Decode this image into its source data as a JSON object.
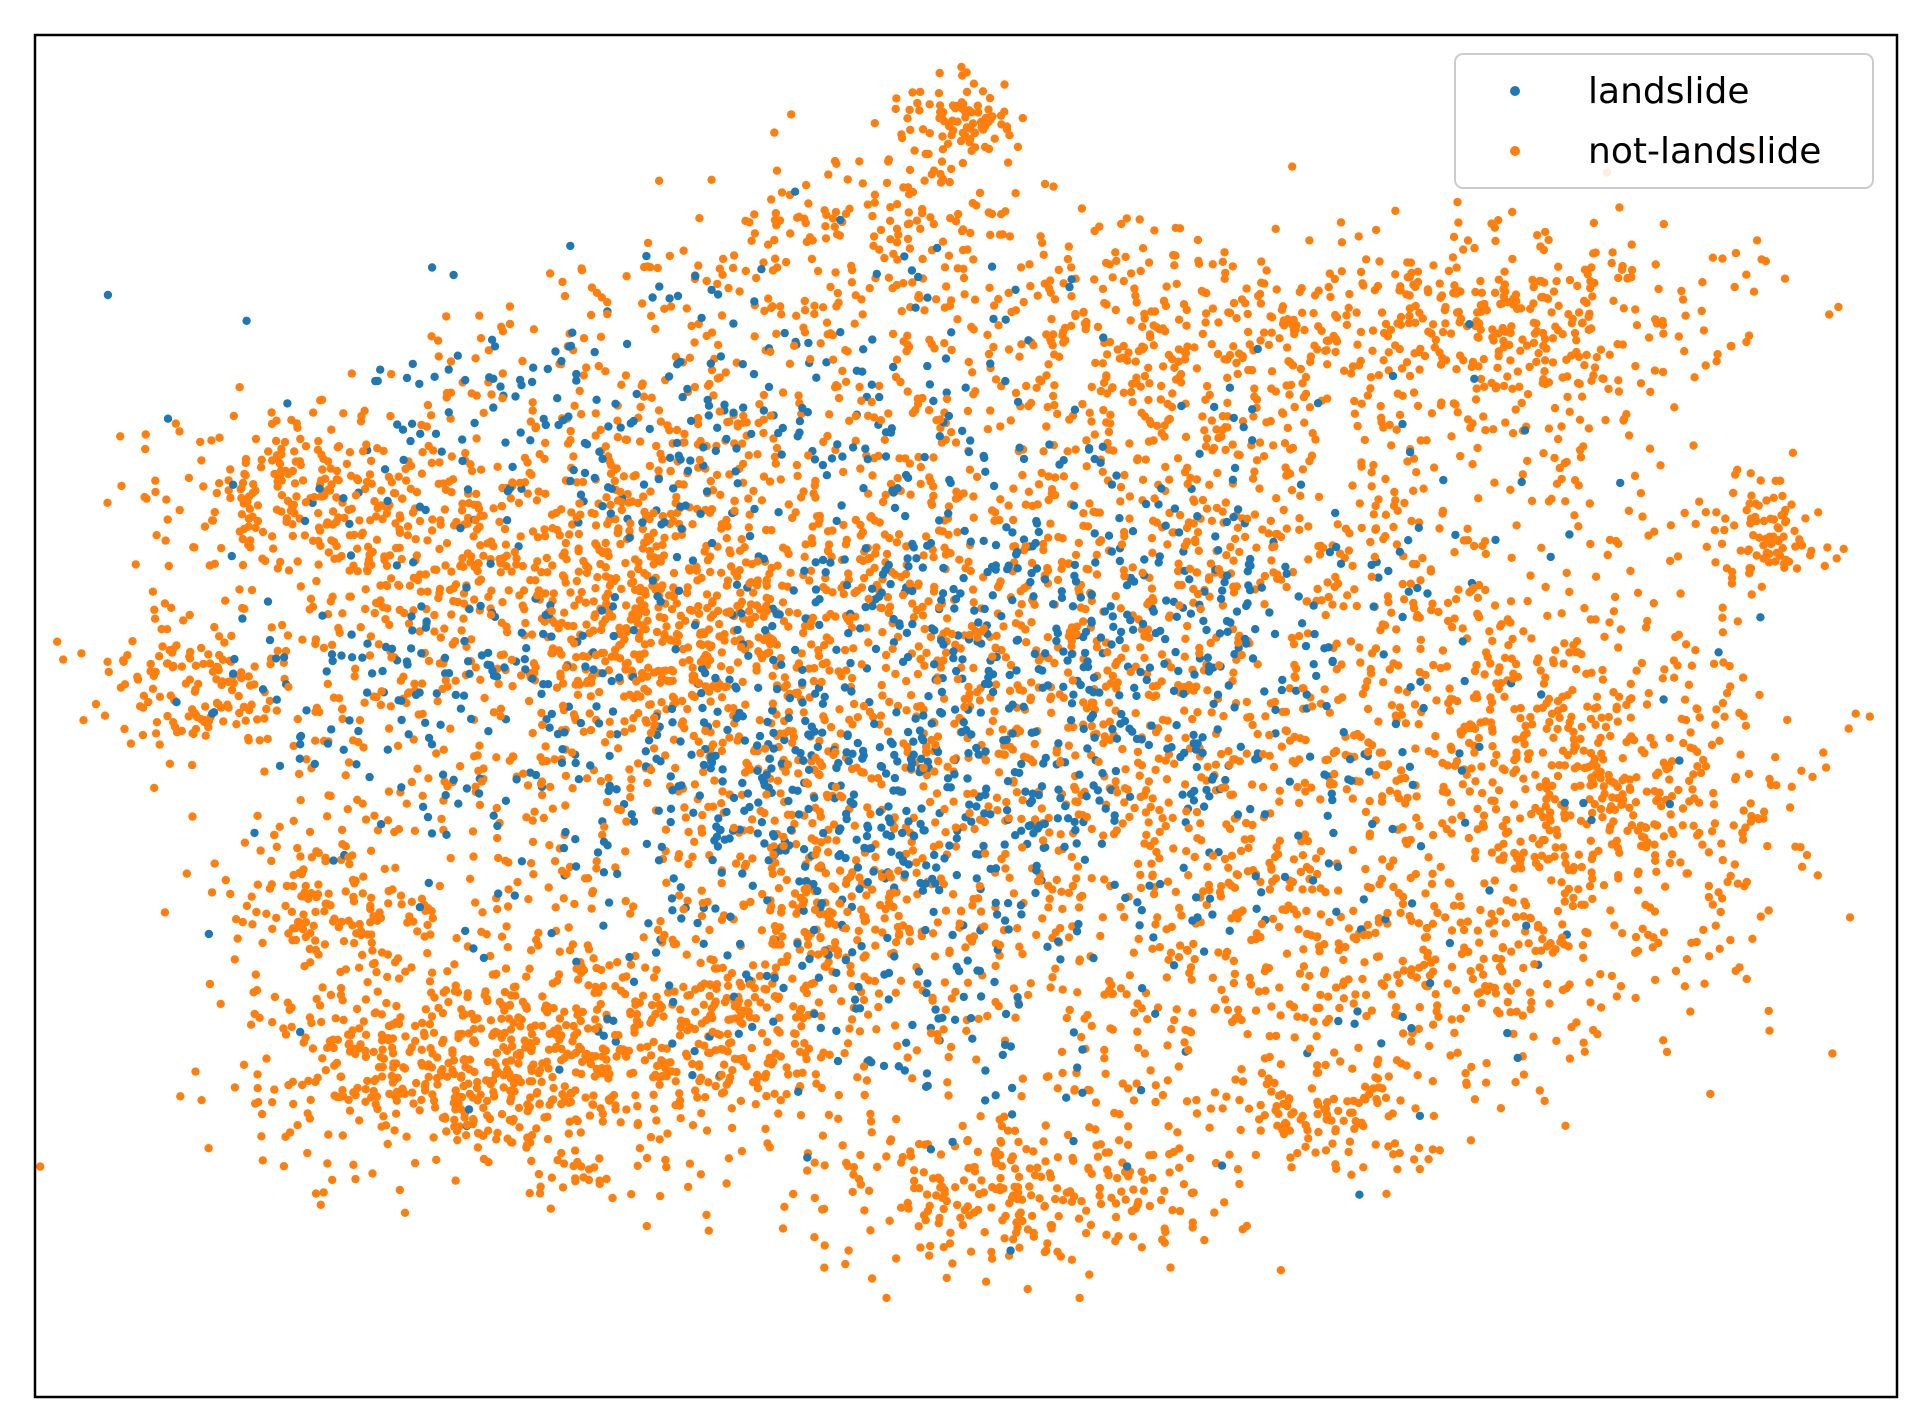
{
  "chart_data": {
    "type": "scatter",
    "title": "",
    "xlabel": "",
    "ylabel": "",
    "xlim": [
      -100,
      100
    ],
    "ylim": [
      -100,
      100
    ],
    "grid": false,
    "ticks": false,
    "legend": {
      "placement": "upper-right"
    },
    "series": [
      {
        "name": "landslide",
        "color": "#1f77b4",
        "clusters": [
          {
            "cx": -10,
            "cy": -12,
            "sx": 22,
            "sy": 14,
            "n": 520
          },
          {
            "cx": -30,
            "cy": 45,
            "sx": 22,
            "sy": 12,
            "n": 230
          },
          {
            "cx": 8,
            "cy": 18,
            "sx": 14,
            "sy": 12,
            "n": 150
          },
          {
            "cx": -60,
            "cy": 5,
            "sx": 12,
            "sy": 10,
            "n": 100
          },
          {
            "cx": 32,
            "cy": 10,
            "sx": 12,
            "sy": 12,
            "n": 100
          },
          {
            "cx": -5,
            "cy": -45,
            "sx": 12,
            "sy": 8,
            "n": 60
          },
          {
            "cx": 0,
            "cy": 0,
            "sx": 45,
            "sy": 40,
            "n": 340
          }
        ]
      },
      {
        "name": "not-landslide",
        "color": "#ff7f0e",
        "clusters": [
          {
            "cx": 0,
            "cy": 10,
            "sx": 46,
            "sy": 40,
            "n": 3300
          },
          {
            "cx": -52,
            "cy": -55,
            "sx": 14,
            "sy": 9,
            "n": 650
          },
          {
            "cx": -25,
            "cy": -48,
            "sx": 7,
            "sy": 6,
            "n": 150
          },
          {
            "cx": 6,
            "cy": -75,
            "sx": 11,
            "sy": 6,
            "n": 230
          },
          {
            "cx": 58,
            "cy": 62,
            "sx": 14,
            "sy": 8,
            "n": 380
          },
          {
            "cx": 22,
            "cy": 58,
            "sx": 10,
            "sy": 7,
            "n": 140
          },
          {
            "cx": -10,
            "cy": 78,
            "sx": 9,
            "sy": 7,
            "n": 140
          },
          {
            "cx": 0,
            "cy": 93,
            "sx": 3,
            "sy": 3,
            "n": 90
          },
          {
            "cx": 50,
            "cy": -38,
            "sx": 20,
            "sy": 10,
            "n": 320
          },
          {
            "cx": 72,
            "cy": -12,
            "sx": 11,
            "sy": 10,
            "n": 300
          },
          {
            "cx": 58,
            "cy": 0,
            "sx": 12,
            "sy": 10,
            "n": 160
          },
          {
            "cx": -75,
            "cy": 35,
            "sx": 8,
            "sy": 6,
            "n": 180
          },
          {
            "cx": -85,
            "cy": 5,
            "sx": 5,
            "sy": 5,
            "n": 120
          },
          {
            "cx": -50,
            "cy": 20,
            "sx": 18,
            "sy": 15,
            "n": 400
          },
          {
            "cx": -33,
            "cy": 12,
            "sx": 6,
            "sy": 8,
            "n": 170
          },
          {
            "cx": -70,
            "cy": -30,
            "sx": 6,
            "sy": 6,
            "n": 120
          },
          {
            "cx": 40,
            "cy": -63,
            "sx": 6,
            "sy": 4,
            "n": 100
          },
          {
            "cx": -15,
            "cy": -30,
            "sx": 6,
            "sy": 5,
            "n": 100
          },
          {
            "cx": 90,
            "cy": 26,
            "sx": 4,
            "sy": 3,
            "n": 60
          },
          {
            "cx": 86,
            "cy": 32,
            "sx": 3,
            "sy": 3,
            "n": 30
          },
          {
            "cx": 100,
            "cy": 0,
            "sx": 0.3,
            "sy": 0.3,
            "n": 1
          }
        ]
      }
    ]
  }
}
